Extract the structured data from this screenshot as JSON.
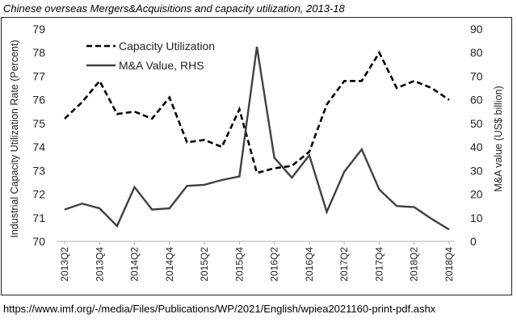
{
  "chart_data": {
    "type": "line",
    "title": "Chinese overseas Mergers&Acquisitions and capacity utilization, 2013-18",
    "categories": [
      "2013Q2",
      "2013Q3",
      "2013Q4",
      "2014Q1",
      "2014Q2",
      "2014Q3",
      "2014Q4",
      "2015Q1",
      "2015Q2",
      "2015Q3",
      "2015Q4",
      "2016Q1",
      "2016Q2",
      "2016Q3",
      "2016Q4",
      "2017Q1",
      "2017Q2",
      "2017Q3",
      "2017Q4",
      "2018Q1",
      "2018Q2",
      "2018Q3",
      "2018Q4"
    ],
    "x_tick_labels": [
      "2013Q2",
      "2013Q4",
      "2014Q2",
      "2014Q4",
      "2015Q2",
      "2015Q4",
      "2016Q2",
      "2016Q4",
      "2017Q2",
      "2017Q4",
      "2018Q2",
      "2018Q4"
    ],
    "ylabel": "Industrial Capacity Utilization Rate (Percent)",
    "y2label": "M&A value (US$ billion)",
    "ylim": [
      70,
      79
    ],
    "y2lim": [
      0,
      90
    ],
    "yticks": [
      70,
      71,
      72,
      73,
      74,
      75,
      76,
      77,
      78,
      79
    ],
    "y2ticks": [
      0,
      10,
      20,
      30,
      40,
      50,
      60,
      70,
      80,
      90
    ],
    "grid": false,
    "legend_position": "top-left",
    "series": [
      {
        "name": "Capacity Utilization",
        "axis": "left",
        "style": "dashed",
        "color": "#000000",
        "values": [
          75.2,
          75.9,
          76.8,
          75.4,
          75.5,
          75.2,
          76.1,
          74.2,
          74.3,
          74.0,
          75.6,
          72.9,
          73.1,
          73.2,
          73.8,
          75.8,
          76.8,
          76.8,
          78.0,
          76.5,
          76.8,
          76.5,
          76.0
        ]
      },
      {
        "name": "M&A Value, RHS",
        "axis": "right",
        "style": "solid",
        "color": "#404040",
        "values": [
          13.5,
          16.0,
          14.0,
          6.5,
          23.0,
          13.5,
          14.0,
          23.5,
          24.0,
          26.0,
          27.5,
          82.5,
          35.5,
          27.0,
          36.5,
          12.5,
          29.5,
          39.0,
          22.0,
          15.0,
          14.5,
          9.5,
          5.0
        ]
      }
    ]
  },
  "source_text": "https://www.imf.org/-/media/Files/Publications/WP/2021/English/wpiea2021160-print-pdf.ashx"
}
